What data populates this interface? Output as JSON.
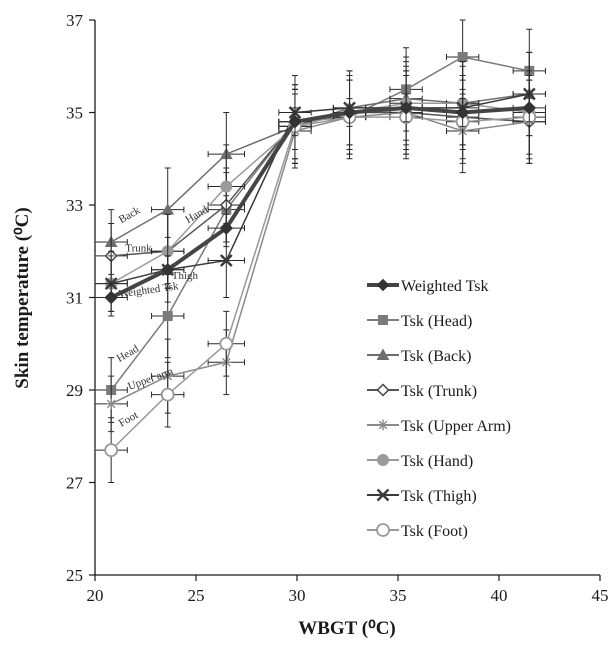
{
  "chart_data": {
    "type": "line",
    "xlabel": "WBGT (⁰C)",
    "ylabel": "Skin temperature (⁰C)",
    "xlim": [
      20,
      45
    ],
    "ylim": [
      25,
      37
    ],
    "xticks": [
      "20",
      "25",
      "30",
      "35",
      "40",
      "45"
    ],
    "yticks": [
      "25",
      "27",
      "29",
      "31",
      "33",
      "35",
      "37"
    ],
    "grid": false,
    "legend_position": "center-right",
    "series": [
      {
        "name": "Weighted Tsk",
        "marker": "diamond-filled",
        "color": "#444444",
        "line_width": 4,
        "points": [
          {
            "x": 20.8,
            "y": 31.0,
            "xerr": 0.8,
            "yerr": 0.3
          },
          {
            "x": 23.6,
            "y": 31.6,
            "xerr": 0.8,
            "yerr": 0.3
          },
          {
            "x": 26.5,
            "y": 32.5,
            "xerr": 0.9,
            "yerr": 0.3
          },
          {
            "x": 29.9,
            "y": 34.8,
            "xerr": 0.8,
            "yerr": 0.3
          },
          {
            "x": 32.6,
            "y": 35.0,
            "xerr": 0.8,
            "yerr": 0.3
          },
          {
            "x": 35.4,
            "y": 35.1,
            "xerr": 0.8,
            "yerr": 0.3
          },
          {
            "x": 38.2,
            "y": 35.0,
            "xerr": 0.8,
            "yerr": 0.3
          },
          {
            "x": 41.5,
            "y": 35.1,
            "xerr": 0.8,
            "yerr": 0.3
          }
        ]
      },
      {
        "name": "Tsk (Head)",
        "marker": "square",
        "color": "#7a7a7a",
        "line_width": 1.5,
        "points": [
          {
            "x": 20.8,
            "y": 29.0,
            "xerr": 0.8,
            "yerr": 0.7
          },
          {
            "x": 23.6,
            "y": 30.6,
            "xerr": 0.8,
            "yerr": 0.9
          },
          {
            "x": 26.5,
            "y": 32.9,
            "xerr": 0.9,
            "yerr": 0.8
          },
          {
            "x": 29.9,
            "y": 34.8,
            "xerr": 0.8,
            "yerr": 0.8
          },
          {
            "x": 32.6,
            "y": 34.9,
            "xerr": 0.8,
            "yerr": 0.9
          },
          {
            "x": 35.4,
            "y": 35.5,
            "xerr": 0.8,
            "yerr": 0.9
          },
          {
            "x": 38.2,
            "y": 36.2,
            "xerr": 0.8,
            "yerr": 0.8
          },
          {
            "x": 41.5,
            "y": 35.9,
            "xerr": 0.8,
            "yerr": 0.9
          }
        ]
      },
      {
        "name": "Tsk (Back)",
        "marker": "triangle",
        "color": "#6e6e6e",
        "line_width": 1.5,
        "points": [
          {
            "x": 20.8,
            "y": 32.2,
            "xerr": 0.8,
            "yerr": 0.7
          },
          {
            "x": 23.6,
            "y": 32.9,
            "xerr": 0.8,
            "yerr": 0.9
          },
          {
            "x": 26.5,
            "y": 34.1,
            "xerr": 0.9,
            "yerr": 0.9
          },
          {
            "x": 29.9,
            "y": 34.7,
            "xerr": 0.8,
            "yerr": 0.8
          },
          {
            "x": 32.6,
            "y": 35.1,
            "xerr": 0.8,
            "yerr": 0.8
          },
          {
            "x": 35.4,
            "y": 35.3,
            "xerr": 0.8,
            "yerr": 0.9
          },
          {
            "x": 38.2,
            "y": 35.2,
            "xerr": 0.8,
            "yerr": 0.9
          },
          {
            "x": 41.5,
            "y": 35.4,
            "xerr": 0.8,
            "yerr": 0.9
          }
        ]
      },
      {
        "name": "Tsk (Trunk)",
        "marker": "diamond-open",
        "color": "#555555",
        "line_width": 1.5,
        "points": [
          {
            "x": 20.8,
            "y": 31.9,
            "xerr": 0.8,
            "yerr": 0.7
          },
          {
            "x": 23.6,
            "y": 32.0,
            "xerr": 0.8,
            "yerr": 0.8
          },
          {
            "x": 26.5,
            "y": 33.0,
            "xerr": 0.9,
            "yerr": 0.8
          },
          {
            "x": 29.9,
            "y": 34.8,
            "xerr": 0.8,
            "yerr": 0.8
          },
          {
            "x": 32.6,
            "y": 35.0,
            "xerr": 0.8,
            "yerr": 0.8
          },
          {
            "x": 35.4,
            "y": 35.0,
            "xerr": 0.8,
            "yerr": 0.9
          },
          {
            "x": 38.2,
            "y": 34.9,
            "xerr": 0.8,
            "yerr": 0.9
          },
          {
            "x": 41.5,
            "y": 34.8,
            "xerr": 0.8,
            "yerr": 0.9
          }
        ]
      },
      {
        "name": "Tsk (Upper Arm)",
        "marker": "star",
        "color": "#8a8a8a",
        "line_width": 1.5,
        "points": [
          {
            "x": 20.8,
            "y": 28.7,
            "xerr": 0.8,
            "yerr": 0.6
          },
          {
            "x": 23.6,
            "y": 29.3,
            "xerr": 0.8,
            "yerr": 0.8
          },
          {
            "x": 26.5,
            "y": 29.6,
            "xerr": 0.9,
            "yerr": 0.7
          },
          {
            "x": 29.9,
            "y": 34.6,
            "xerr": 0.8,
            "yerr": 0.8
          },
          {
            "x": 32.6,
            "y": 34.9,
            "xerr": 0.8,
            "yerr": 0.8
          },
          {
            "x": 35.4,
            "y": 35.0,
            "xerr": 0.8,
            "yerr": 0.9
          },
          {
            "x": 38.2,
            "y": 34.6,
            "xerr": 0.8,
            "yerr": 0.9
          },
          {
            "x": 41.5,
            "y": 34.8,
            "xerr": 0.8,
            "yerr": 0.9
          }
        ]
      },
      {
        "name": "Tsk (Hand)",
        "marker": "circle-filled",
        "color": "#9a9a9a",
        "line_width": 1.5,
        "points": [
          {
            "x": 20.8,
            "y": 31.3,
            "xerr": 0.8,
            "yerr": 0.7
          },
          {
            "x": 23.6,
            "y": 32.0,
            "xerr": 0.8,
            "yerr": 0.8
          },
          {
            "x": 26.5,
            "y": 33.4,
            "xerr": 0.9,
            "yerr": 0.9
          },
          {
            "x": 29.9,
            "y": 34.7,
            "xerr": 0.8,
            "yerr": 0.8
          },
          {
            "x": 32.6,
            "y": 35.0,
            "xerr": 0.8,
            "yerr": 0.8
          },
          {
            "x": 35.4,
            "y": 35.2,
            "xerr": 0.8,
            "yerr": 0.9
          },
          {
            "x": 38.2,
            "y": 35.2,
            "xerr": 0.8,
            "yerr": 0.9
          },
          {
            "x": 41.5,
            "y": 35.0,
            "xerr": 0.8,
            "yerr": 0.9
          }
        ]
      },
      {
        "name": "Tsk (Thigh)",
        "marker": "x",
        "color": "#3a3a3a",
        "line_width": 1.5,
        "points": [
          {
            "x": 20.8,
            "y": 31.3,
            "xerr": 0.8,
            "yerr": 0.6
          },
          {
            "x": 23.6,
            "y": 31.6,
            "xerr": 0.8,
            "yerr": 0.7
          },
          {
            "x": 26.5,
            "y": 31.8,
            "xerr": 0.9,
            "yerr": 0.8
          },
          {
            "x": 29.9,
            "y": 35.0,
            "xerr": 0.8,
            "yerr": 0.8
          },
          {
            "x": 32.6,
            "y": 35.1,
            "xerr": 0.8,
            "yerr": 0.8
          },
          {
            "x": 35.4,
            "y": 35.1,
            "xerr": 0.8,
            "yerr": 0.9
          },
          {
            "x": 38.2,
            "y": 35.1,
            "xerr": 0.8,
            "yerr": 0.9
          },
          {
            "x": 41.5,
            "y": 35.4,
            "xerr": 0.8,
            "yerr": 0.9
          }
        ]
      },
      {
        "name": "Tsk (Foot)",
        "marker": "circle-open",
        "color": "#999999",
        "line_width": 1.5,
        "points": [
          {
            "x": 20.8,
            "y": 27.7,
            "xerr": 0.8,
            "yerr": 0.7
          },
          {
            "x": 23.6,
            "y": 28.9,
            "xerr": 0.8,
            "yerr": 0.7
          },
          {
            "x": 26.5,
            "y": 30.0,
            "xerr": 0.9,
            "yerr": 0.7
          },
          {
            "x": 29.9,
            "y": 34.7,
            "xerr": 0.8,
            "yerr": 0.8
          },
          {
            "x": 32.6,
            "y": 34.9,
            "xerr": 0.8,
            "yerr": 0.8
          },
          {
            "x": 35.4,
            "y": 34.9,
            "xerr": 0.8,
            "yerr": 0.9
          },
          {
            "x": 38.2,
            "y": 34.8,
            "xerr": 0.8,
            "yerr": 0.9
          },
          {
            "x": 41.5,
            "y": 34.9,
            "xerr": 0.8,
            "yerr": 0.9
          }
        ]
      }
    ],
    "annotations": [
      {
        "text": "Back",
        "x": 21.3,
        "y": 32.6,
        "angle": -30
      },
      {
        "text": "Hand",
        "x": 24.6,
        "y": 32.6,
        "angle": -30
      },
      {
        "text": "Trunk",
        "x": 21.5,
        "y": 32.0,
        "angle": 0
      },
      {
        "text": "Thigh",
        "x": 23.8,
        "y": 31.4,
        "angle": 0
      },
      {
        "text": "Weighted Tsk",
        "x": 21.2,
        "y": 31.0,
        "angle": -8
      },
      {
        "text": "Head",
        "x": 21.2,
        "y": 29.6,
        "angle": -30
      },
      {
        "text": "Upper arm",
        "x": 21.7,
        "y": 29.0,
        "angle": -20
      },
      {
        "text": "Foot",
        "x": 21.3,
        "y": 28.2,
        "angle": -30
      }
    ]
  }
}
